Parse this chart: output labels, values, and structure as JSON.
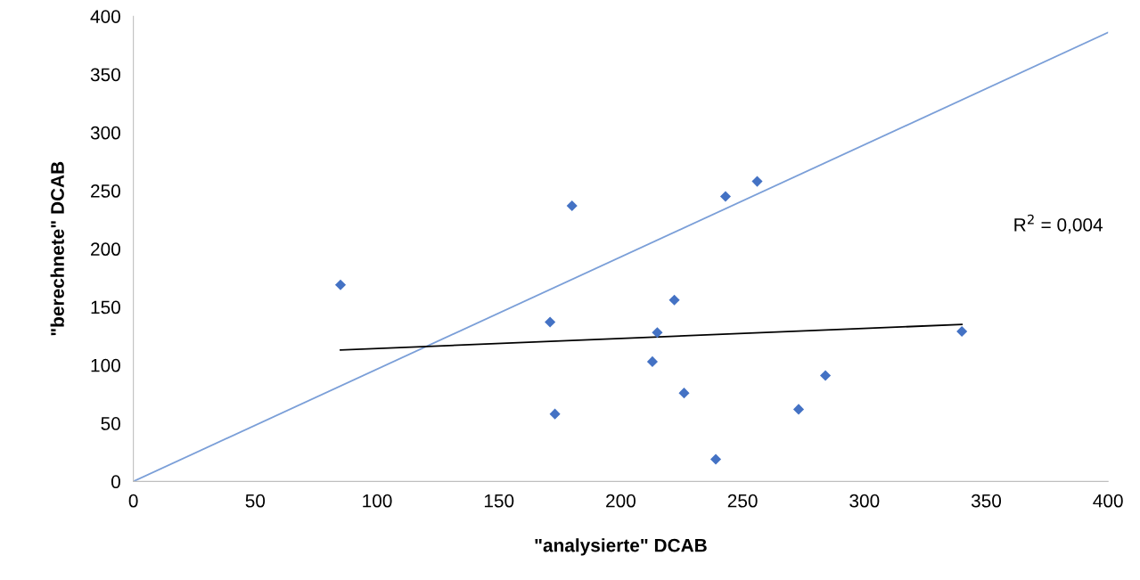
{
  "chart_data": {
    "type": "scatter",
    "xlabel": "\"analysierte\" DCAB",
    "ylabel": "\"berechnete\" DCAB",
    "annotations": [
      "R$^{2}$ = 0,004"
    ],
    "series": [
      {
        "color": "#4472c4",
        "marker": "diamond",
        "x": [
          85,
          180,
          171,
          173,
          213,
          215,
          222,
          226,
          239,
          243,
          256,
          273,
          284,
          340
        ],
        "values": [
          169,
          237,
          137,
          58,
          103,
          128,
          156,
          76,
          19,
          245,
          258,
          62,
          91,
          129
        ]
      },
      {
        "type": "line",
        "color": "#7b9fd8",
        "marker": "none",
        "x": [
          0,
          400
        ],
        "values": [
          0,
          386
        ]
      },
      {
        "type": "line",
        "color": "#000000",
        "marker": "none",
        "x": [
          85,
          340
        ],
        "values": [
          113,
          135
        ]
      }
    ],
    "xlim": [
      0,
      400
    ],
    "xticks": [
      0,
      50,
      100,
      150,
      200,
      250,
      300,
      350,
      400
    ],
    "ylim": [
      0,
      400
    ],
    "yticks": [
      0,
      50,
      100,
      150,
      200,
      250,
      300,
      350,
      400
    ],
    "grid": false,
    "legend": false
  }
}
